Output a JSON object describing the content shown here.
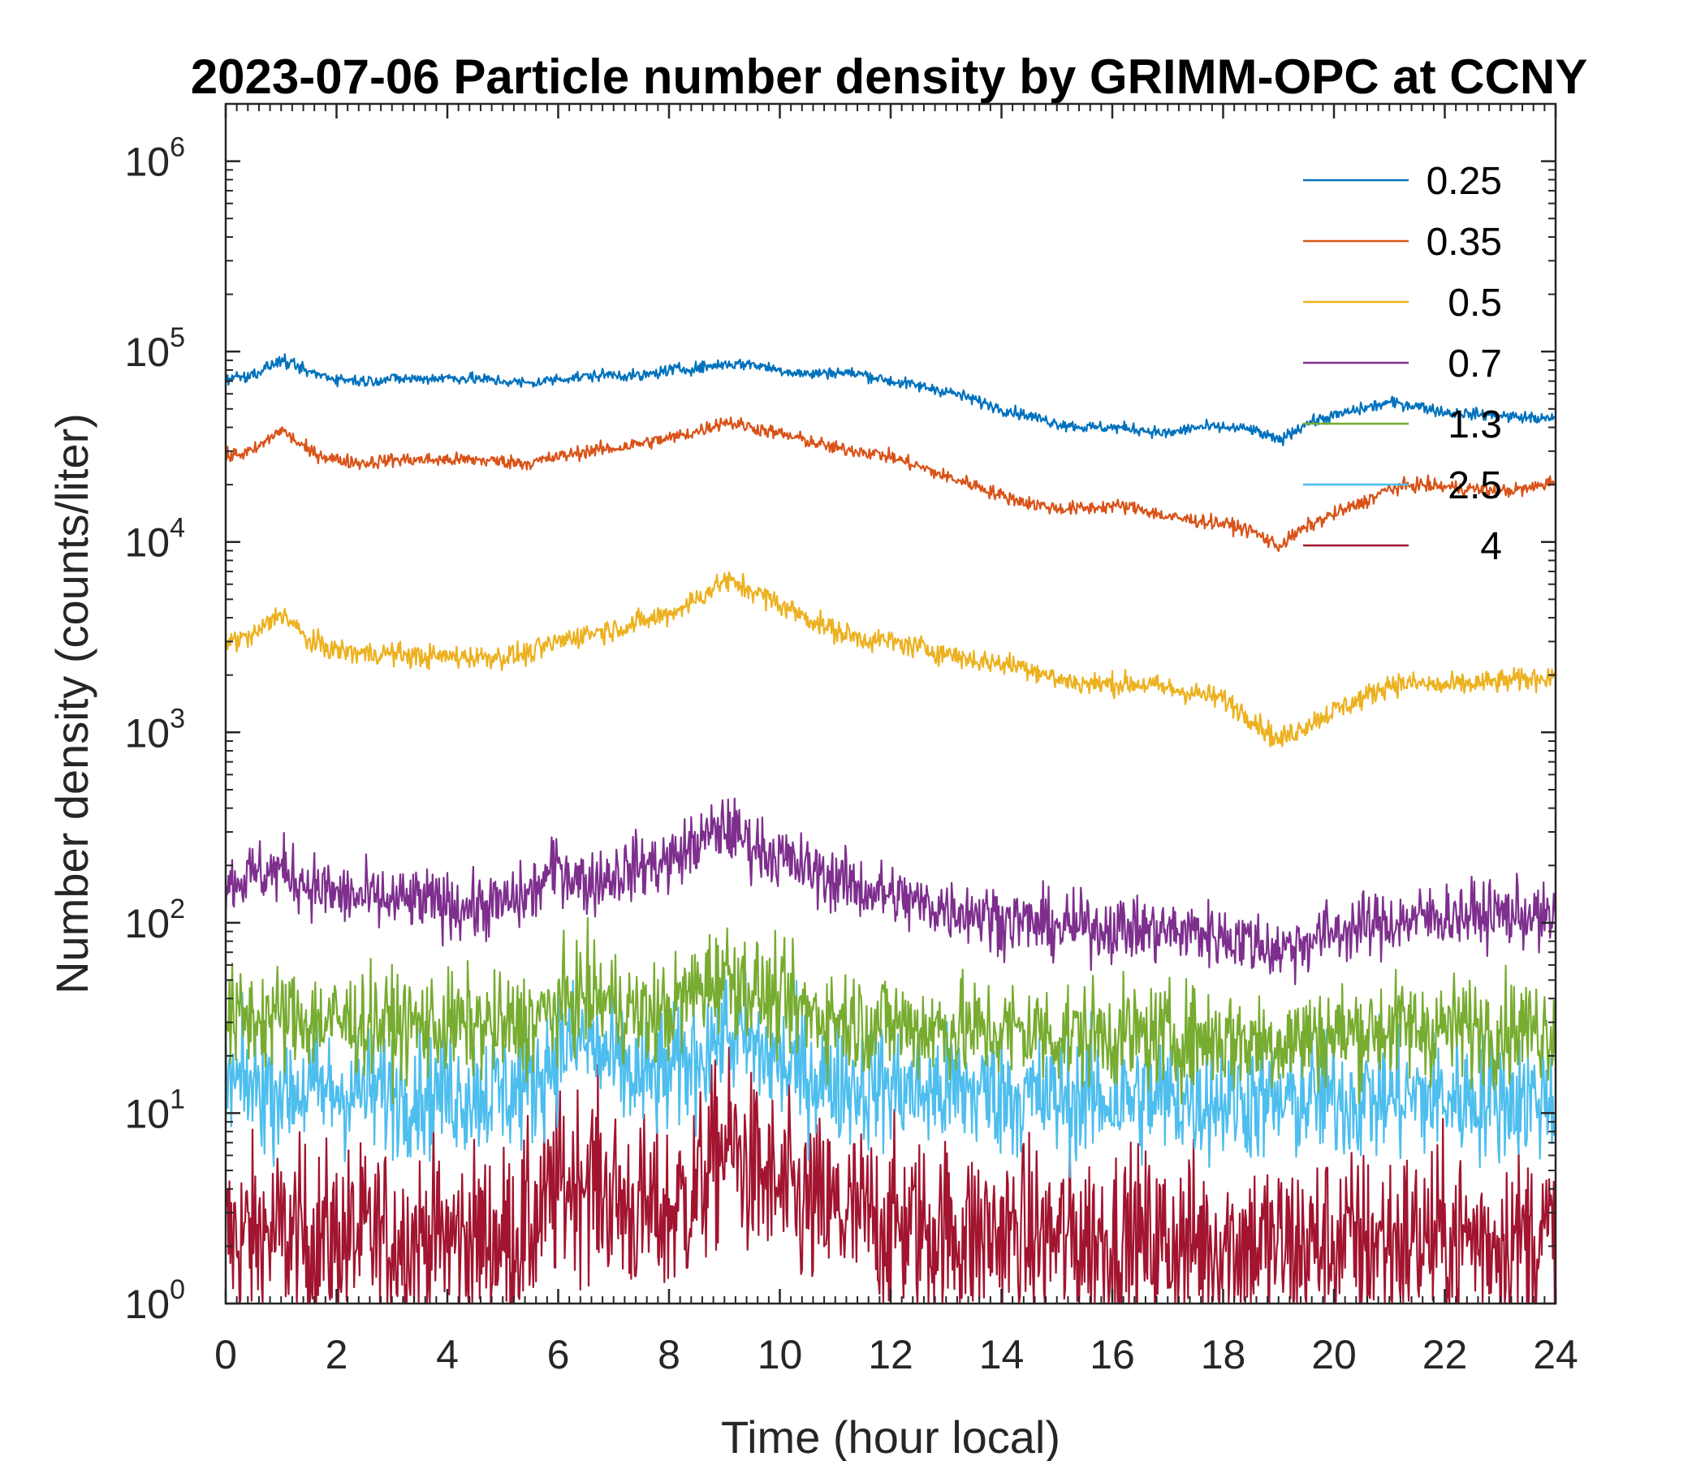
{
  "chart_data": {
    "type": "line",
    "title": "2023-07-06 Particle number density by GRIMM-OPC at CCNY",
    "xlabel": "Time (hour local)",
    "ylabel": "Number density (counts/liter)",
    "xlim": [
      0,
      24
    ],
    "ylim": [
      1,
      2000000
    ],
    "yscale": "log",
    "grid": false,
    "legend_position": "top-right",
    "x_ticks": [
      "0",
      "2",
      "4",
      "6",
      "8",
      "10",
      "12",
      "14",
      "16",
      "18",
      "20",
      "22",
      "24"
    ],
    "y_ticks": [
      {
        "base": "10",
        "exp": "0"
      },
      {
        "base": "10",
        "exp": "1"
      },
      {
        "base": "10",
        "exp": "2"
      },
      {
        "base": "10",
        "exp": "3"
      },
      {
        "base": "10",
        "exp": "4"
      },
      {
        "base": "10",
        "exp": "5"
      },
      {
        "base": "10",
        "exp": "6"
      }
    ],
    "x": [
      0,
      0.5,
      1,
      1.5,
      2,
      2.5,
      3,
      3.5,
      4,
      4.5,
      5,
      5.5,
      6,
      6.5,
      7,
      7.5,
      8,
      8.5,
      9,
      9.5,
      10,
      10.5,
      11,
      11.5,
      12,
      12.5,
      13,
      13.5,
      14,
      14.5,
      15,
      15.5,
      16,
      16.5,
      17,
      17.5,
      18,
      18.5,
      19,
      19.5,
      20,
      20.5,
      21,
      21.5,
      22,
      22.5,
      23,
      23.5,
      24
    ],
    "series": [
      {
        "name": "0.25",
        "color": "#0072bd",
        "noise": 0.05,
        "values": [
          72000,
          76000,
          90000,
          78000,
          72000,
          70000,
          72000,
          72000,
          73000,
          72000,
          70000,
          68000,
          72000,
          74000,
          76000,
          74000,
          80000,
          82000,
          86000,
          86000,
          80000,
          76000,
          78000,
          76000,
          70000,
          66000,
          62000,
          56000,
          50000,
          46000,
          42000,
          40000,
          40000,
          39000,
          37000,
          40000,
          40000,
          39000,
          34000,
          42000,
          46000,
          50000,
          54000,
          52000,
          48000,
          47000,
          46000,
          45000,
          44000
        ]
      },
      {
        "name": "0.35",
        "color": "#d95319",
        "noise": 0.06,
        "values": [
          28000,
          30000,
          39000,
          30000,
          27000,
          26000,
          27000,
          27000,
          27000,
          27000,
          26500,
          26000,
          28000,
          30000,
          31000,
          33000,
          35000,
          38000,
          43000,
          40000,
          37000,
          34000,
          31000,
          30000,
          28000,
          25000,
          22000,
          20000,
          17500,
          16000,
          15000,
          15000,
          15500,
          15000,
          13500,
          13000,
          12500,
          11500,
          9500,
          12000,
          14000,
          16000,
          19000,
          20000,
          19500,
          19000,
          18500,
          19000,
          21000
        ]
      },
      {
        "name": "0.5",
        "color": "#edb120",
        "noise": 0.1,
        "values": [
          3000,
          3200,
          4300,
          3000,
          2700,
          2600,
          2600,
          2500,
          2500,
          2500,
          2500,
          2600,
          3000,
          3300,
          3500,
          3800,
          4200,
          5000,
          6300,
          5600,
          4700,
          4000,
          3400,
          3100,
          3000,
          2800,
          2600,
          2400,
          2300,
          2200,
          1900,
          1800,
          1800,
          1800,
          1700,
          1600,
          1500,
          1200,
          900,
          1100,
          1300,
          1500,
          1800,
          1800,
          1750,
          1800,
          1850,
          1900,
          2000
        ]
      },
      {
        "name": "0.7",
        "color": "#7e2f8e",
        "noise": 0.28,
        "values": [
          160,
          180,
          190,
          160,
          140,
          135,
          130,
          130,
          125,
          120,
          125,
          140,
          200,
          160,
          180,
          200,
          210,
          260,
          320,
          260,
          220,
          190,
          170,
          150,
          140,
          125,
          120,
          115,
          105,
          100,
          95,
          95,
          95,
          92,
          90,
          90,
          85,
          80,
          72,
          80,
          90,
          95,
          100,
          105,
          110,
          110,
          112,
          110,
          100
        ]
      },
      {
        "name": "1.3",
        "color": "#77ac30",
        "noise": 0.45,
        "values": [
          30,
          32,
          32,
          31,
          30,
          30,
          29,
          29,
          29,
          29,
          28,
          30,
          36,
          42,
          38,
          32,
          34,
          45,
          55,
          45,
          38,
          34,
          32,
          30,
          30,
          28,
          28,
          27,
          27,
          27,
          26,
          26,
          26,
          25,
          25,
          25,
          25,
          24,
          24,
          25,
          26,
          27,
          28,
          28,
          28,
          28,
          28,
          28,
          28
        ]
      },
      {
        "name": "2.5",
        "color": "#4dbeee",
        "noise": 0.55,
        "values": [
          14,
          14,
          14,
          13,
          13,
          13,
          13,
          13,
          13,
          13,
          13,
          14,
          22,
          24,
          18,
          15,
          16,
          20,
          28,
          22,
          18,
          16,
          15,
          14,
          14,
          13,
          13,
          13,
          13,
          12,
          12,
          12,
          12,
          12,
          12,
          12,
          12,
          12,
          11,
          12,
          12,
          12,
          12,
          12,
          12,
          12,
          12,
          12,
          12
        ]
      },
      {
        "name": "4",
        "color": "#a2142f",
        "noise": 0.8,
        "values": [
          2.2,
          2.3,
          2.3,
          2.2,
          2.2,
          2.2,
          2.2,
          2.2,
          2.2,
          2.2,
          2.2,
          2.5,
          4,
          5,
          3.5,
          3,
          3,
          4,
          7,
          5,
          3.8,
          3.2,
          3,
          2.8,
          2.6,
          2.5,
          2.4,
          2.3,
          2.3,
          2.2,
          2.2,
          2.2,
          2.2,
          2.1,
          2.1,
          2.1,
          2.1,
          2.1,
          2.0,
          2.0,
          2.1,
          2.1,
          2.2,
          2.2,
          2.2,
          2.2,
          2.2,
          2.2,
          2.2
        ]
      }
    ]
  }
}
